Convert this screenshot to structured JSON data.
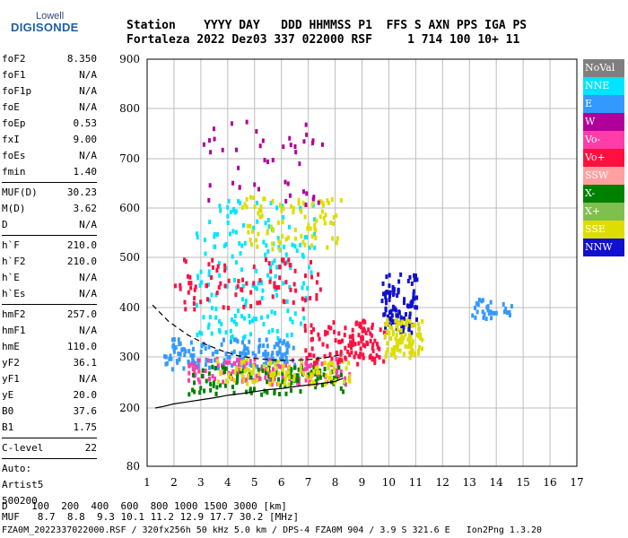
{
  "logo": {
    "top": "Lowell",
    "main": "DIGISONDE"
  },
  "header": {
    "line1": "Station    YYYY DAY   DDD HHMMSS P1  FFS S AXN PPS IGA PS",
    "line2": "Fortaleza 2022 Dez03 337 022000 RSF     1 714 100 10+ 11"
  },
  "params": {
    "g1": [
      {
        "label": "foF2",
        "value": "8.350"
      },
      {
        "label": "foF1",
        "value": "N/A"
      },
      {
        "label": "foF1p",
        "value": "N/A"
      },
      {
        "label": "foE",
        "value": "N/A"
      },
      {
        "label": "foEp",
        "value": "0.53"
      },
      {
        "label": "fxI",
        "value": "9.00"
      },
      {
        "label": "foEs",
        "value": "N/A"
      },
      {
        "label": "fmin",
        "value": "1.40"
      }
    ],
    "g2": [
      {
        "label": "MUF(D)",
        "value": "30.23"
      },
      {
        "label": "M(D)",
        "value": "3.62"
      },
      {
        "label": "D",
        "value": "N/A"
      }
    ],
    "g3": [
      {
        "label": "h`F",
        "value": "210.0"
      },
      {
        "label": "h`F2",
        "value": "210.0"
      },
      {
        "label": "h`E",
        "value": "N/A"
      },
      {
        "label": "h`Es",
        "value": "N/A"
      }
    ],
    "g4": [
      {
        "label": "hmF2",
        "value": "257.0"
      },
      {
        "label": "hmF1",
        "value": "N/A"
      },
      {
        "label": "hmE",
        "value": "110.0"
      },
      {
        "label": "yF2",
        "value": "36.1"
      },
      {
        "label": "yF1",
        "value": "N/A"
      },
      {
        "label": "yE",
        "value": "20.0"
      },
      {
        "label": "B0",
        "value": "37.6"
      },
      {
        "label": "B1",
        "value": "1.75"
      }
    ],
    "clevel": {
      "label": "C-level",
      "value": "22"
    },
    "auto": [
      "Auto:",
      "Artist5",
      "500200"
    ]
  },
  "legend": [
    {
      "label": "NoVal",
      "color": "#7f7f7f"
    },
    {
      "label": "NNE",
      "color": "#00e5ff"
    },
    {
      "label": "E",
      "color": "#3399ff"
    },
    {
      "label": "W",
      "color": "#b0009c"
    },
    {
      "label": "Vo-",
      "color": "#ff3da8"
    },
    {
      "label": "Vo+",
      "color": "#ff1040"
    },
    {
      "label": "SSW",
      "color": "#ffa0a0"
    },
    {
      "label": "X-",
      "color": "#008000"
    },
    {
      "label": "X+",
      "color": "#7fbf4f"
    },
    {
      "label": "SSE",
      "color": "#dddd00"
    },
    {
      "label": "NNW",
      "color": "#1010d0"
    }
  ],
  "footer": {
    "line1": "D    100  200  400  600  800 1000 1500 3000 [km]",
    "line2": "MUF   8.7  8.8  9.3 10.1 11.2 12.9 17.7 30.2 [MHz]",
    "line3": "FZA0M_2022337022000.RSF / 320fx256h 50 kHz 5.0 km / DPS-4 FZA0M 904 / 3.9 S 321.6 E   Ion2Png 1.3.20"
  },
  "chart_data": {
    "type": "scatter",
    "xlim": [
      1,
      17
    ],
    "ylim": [
      80,
      900
    ],
    "x_ticks": [
      1,
      2,
      3,
      4,
      5,
      6,
      7,
      8,
      9,
      10,
      11,
      12,
      13,
      14,
      15,
      16,
      17
    ],
    "y_ticks": [
      80,
      200,
      300,
      400,
      500,
      600,
      700,
      800,
      900
    ],
    "grid": true,
    "legend_position": "right",
    "trace_fit": {
      "x": [
        1.3,
        1.6,
        2.0,
        2.5,
        3.0,
        3.5,
        4.0,
        4.5,
        5.0,
        5.5,
        6.0,
        6.5,
        7.0,
        7.5,
        8.0,
        8.3
      ],
      "y": [
        200,
        203,
        208,
        212,
        216,
        220,
        225,
        228,
        232,
        236,
        238,
        242,
        245,
        248,
        252,
        258
      ]
    },
    "profile_curve": {
      "x": [
        1.2,
        1.8,
        2.5,
        3.2,
        3.8,
        4.4,
        5.0,
        5.6,
        6.2,
        6.8,
        7.3,
        7.8,
        8.3
      ],
      "y": [
        405,
        372,
        345,
        325,
        312,
        302,
        297,
        294,
        293,
        294,
        296,
        300,
        305
      ]
    },
    "clusters": [
      {
        "name": "E",
        "x": [
          1.6,
          6.5
        ],
        "y": [
          280,
          340
        ],
        "color": "#3399ff",
        "n": 160
      },
      {
        "name": "NNE",
        "x": [
          2.8,
          7.2
        ],
        "y": [
          340,
          620
        ],
        "color": "#00e5ff",
        "n": 180
      },
      {
        "name": "SSE",
        "x": [
          4.5,
          8.2
        ],
        "y": [
          520,
          630
        ],
        "color": "#dddd00",
        "n": 90
      },
      {
        "name": "Vo+",
        "x": [
          2.0,
          7.5
        ],
        "y": [
          400,
          500
        ],
        "color": "#ff1040",
        "n": 90
      },
      {
        "name": "Vo-",
        "x": [
          2.5,
          8.5
        ],
        "y": [
          250,
          300
        ],
        "color": "#ff3da8",
        "n": 140
      },
      {
        "name": "X-",
        "x": [
          2.5,
          8.3
        ],
        "y": [
          230,
          285
        ],
        "color": "#008000",
        "n": 120
      },
      {
        "name": "SSE",
        "x": [
          3.5,
          8.5
        ],
        "y": [
          250,
          300
        ],
        "color": "#dddd00",
        "n": 100
      },
      {
        "name": "Vo+",
        "x": [
          6.8,
          9.8
        ],
        "y": [
          290,
          380
        ],
        "color": "#ff1040",
        "n": 120
      },
      {
        "name": "NNW",
        "x": [
          9.7,
          11.0
        ],
        "y": [
          350,
          470
        ],
        "color": "#1010d0",
        "n": 100
      },
      {
        "name": "SSE",
        "x": [
          9.8,
          11.2
        ],
        "y": [
          300,
          380
        ],
        "color": "#dddd00",
        "n": 90
      },
      {
        "name": "E",
        "x": [
          13.0,
          14.6
        ],
        "y": [
          380,
          420
        ],
        "color": "#3399ff",
        "n": 30
      },
      {
        "name": "W",
        "x": [
          3.0,
          7.5
        ],
        "y": [
          610,
          790
        ],
        "color": "#b0009c",
        "n": 45
      }
    ]
  }
}
